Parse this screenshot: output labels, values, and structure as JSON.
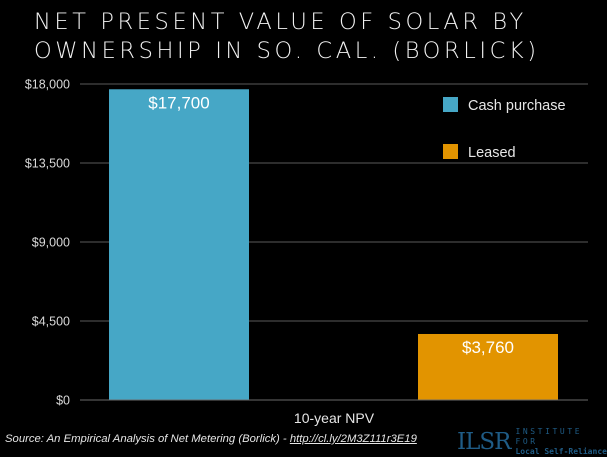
{
  "title": {
    "line1": "NET PRESENT VALUE OF SOLAR BY",
    "line2": "OWNERSHIP IN SO. CAL. (BORLICK)"
  },
  "chart_data": {
    "type": "bar",
    "title": "NET PRESENT VALUE OF SOLAR BY OWNERSHIP IN SO. CAL. (BORLICK)",
    "categories": [
      "10-year NPV"
    ],
    "xlabel": "10-year NPV",
    "ylabel": "",
    "ylim": [
      0,
      18000
    ],
    "yticks": [
      0,
      4500,
      9000,
      13500,
      18000
    ],
    "ytick_labels": [
      "$0",
      "$4,500",
      "$9,000",
      "$13,500",
      "$18,000"
    ],
    "grid": true,
    "legend_position": "top-right",
    "series": [
      {
        "name": "Cash purchase",
        "values": [
          17700
        ],
        "label": "$17,700",
        "color": "#46a7c6"
      },
      {
        "name": "Leased",
        "values": [
          3760
        ],
        "label": "$3,760",
        "color": "#e29400"
      }
    ]
  },
  "footer": {
    "source_prefix": "Source: An Empirical Analysis of Net Metering (Borlick) - ",
    "source_link": "http://cl.ly/2M3Z111r3E19"
  },
  "logo": {
    "mark": "ILSR",
    "line1": "INSTITUTE FOR",
    "line2": "Local Self-Reliance"
  }
}
